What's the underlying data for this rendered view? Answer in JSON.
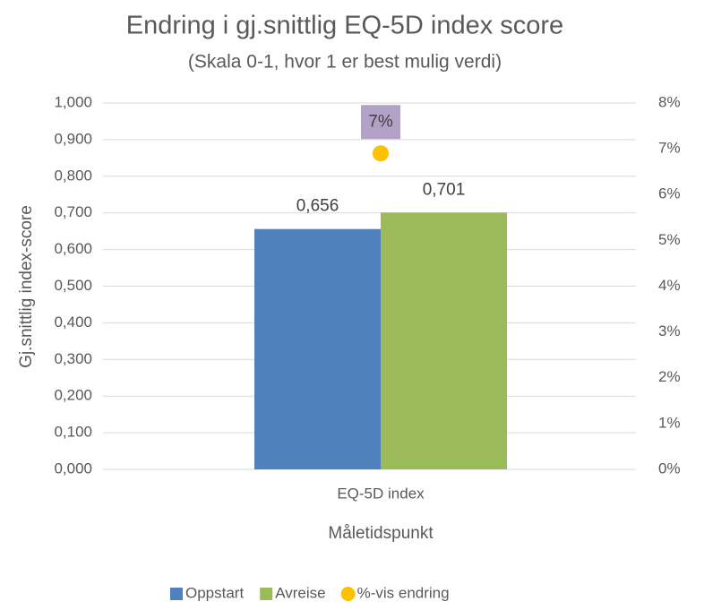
{
  "chart_data": {
    "type": "bar",
    "title": "Endring i gj.snittlig EQ-5D index score",
    "subtitle": "(Skala 0-1, hvor 1 er best mulig verdi)",
    "x_label": "Måletidspunkt",
    "y_label": "Gj.snittlig index-score",
    "categories": [
      "EQ-5D index"
    ],
    "series": [
      {
        "name": "Oppstart",
        "color": "#4f81bd",
        "values": [
          0.656
        ],
        "value_labels": [
          "0,656"
        ]
      },
      {
        "name": "Avreise",
        "color": "#9bbb59",
        "values": [
          0.701
        ],
        "value_labels": [
          "0,701"
        ]
      },
      {
        "name": "%-vis endring",
        "color": "#ffc000",
        "type": "scatter",
        "axis": "y2",
        "values": [
          6.9
        ],
        "value_labels": [
          "7%"
        ]
      }
    ],
    "ylim": [
      0,
      1
    ],
    "yticks": [
      {
        "value": 0,
        "label": "0,000"
      },
      {
        "value": 0.1,
        "label": "0,100"
      },
      {
        "value": 0.2,
        "label": "0,200"
      },
      {
        "value": 0.3,
        "label": "0,300"
      },
      {
        "value": 0.4,
        "label": "0,400"
      },
      {
        "value": 0.5,
        "label": "0,500"
      },
      {
        "value": 0.6,
        "label": "0,600"
      },
      {
        "value": 0.7,
        "label": "0,700"
      },
      {
        "value": 0.8,
        "label": "0,800"
      },
      {
        "value": 0.9,
        "label": "0,900"
      },
      {
        "value": 1,
        "label": "1,000"
      }
    ],
    "y2lim": [
      0,
      8
    ],
    "y2ticks": [
      {
        "value": 0,
        "label": "0%"
      },
      {
        "value": 1,
        "label": "1%"
      },
      {
        "value": 2,
        "label": "2%"
      },
      {
        "value": 3,
        "label": "3%"
      },
      {
        "value": 4,
        "label": "4%"
      },
      {
        "value": 5,
        "label": "5%"
      },
      {
        "value": 6,
        "label": "6%"
      },
      {
        "value": 7,
        "label": "7%"
      },
      {
        "value": 8,
        "label": "8%"
      }
    ],
    "grid": true,
    "legend": "bottom"
  }
}
